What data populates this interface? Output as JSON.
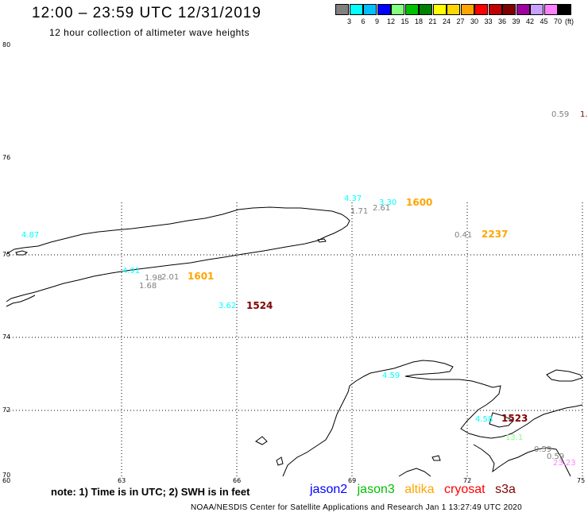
{
  "header": {
    "title": "12:00 – 23:59 UTC 12/31/2019",
    "subtitle": "12 hour collection of altimeter wave heights"
  },
  "colorbar": {
    "unit": "(ft)",
    "colors": [
      "#808080",
      "#00ffff",
      "#00bfff",
      "#0000ff",
      "#80ff80",
      "#00c000",
      "#008000",
      "#ffff00",
      "#ffd700",
      "#ffa500",
      "#ff0000",
      "#c00000",
      "#800000",
      "#a000a0",
      "#c8a0ff",
      "#ff80ff",
      "#000000"
    ],
    "labels": [
      "3",
      "6",
      "9",
      "12",
      "15",
      "18",
      "21",
      "24",
      "27",
      "30",
      "33",
      "36",
      "39",
      "42",
      "45",
      "70"
    ]
  },
  "axes": {
    "lat_labels": [
      "80",
      "76",
      "75",
      "74",
      "72",
      "70"
    ],
    "lon_labels": [
      "60",
      "63",
      "66",
      "69",
      "72",
      "75"
    ]
  },
  "observations": [
    {
      "text": "0.59",
      "color": "#808080"
    },
    {
      "text": "1.",
      "color": "#800000"
    },
    {
      "text": "4.37",
      "color": "#00ffff"
    },
    {
      "text": "3.30",
      "color": "#00ffff"
    },
    {
      "text": "1.71",
      "color": "#808080"
    },
    {
      "text": "2.61",
      "color": "#808080"
    },
    {
      "text": "4.87",
      "color": "#00ffff"
    },
    {
      "text": "0.41",
      "color": "#808080"
    },
    {
      "text": "4.91",
      "color": "#00ffff"
    },
    {
      "text": "1.98",
      "color": "#808080"
    },
    {
      "text": "2.01",
      "color": "#808080"
    },
    {
      "text": "1.68",
      "color": "#808080"
    },
    {
      "text": "3.62",
      "color": "#00ffff"
    },
    {
      "text": "4.59",
      "color": "#00ffff"
    },
    {
      "text": "4.58",
      "color": "#00ffff"
    },
    {
      "text": "13.1",
      "color": "#80ff80"
    },
    {
      "text": "0.59",
      "color": "#808080"
    },
    {
      "text": "0.59",
      "color": "#808080"
    },
    {
      "text": "23.23",
      "color": "#ff80ff"
    }
  ],
  "pass_times": [
    {
      "text": "1600",
      "color": "#ffa500"
    },
    {
      "text": "2237",
      "color": "#ffa500"
    },
    {
      "text": "1601",
      "color": "#ffa500"
    },
    {
      "text": "1524",
      "color": "#800000"
    },
    {
      "text": "1523",
      "color": "#800000"
    }
  ],
  "note": "note:  1) Time is in UTC;  2) SWH is in feet",
  "legend": {
    "jason2": {
      "label": "jason2",
      "color": "#0000ff"
    },
    "jason3": {
      "label": "jason3",
      "color": "#00c000"
    },
    "altika": {
      "label": "altika",
      "color": "#ffa500"
    },
    "cryosat": {
      "label": "cryosat",
      "color": "#ff0000"
    },
    "s3a": {
      "label": "s3a",
      "color": "#800000"
    }
  },
  "footer": "NOAA/NESDIS Center for Satellite Applications and Research     Jan  1 13:27:49 UTC 2020"
}
